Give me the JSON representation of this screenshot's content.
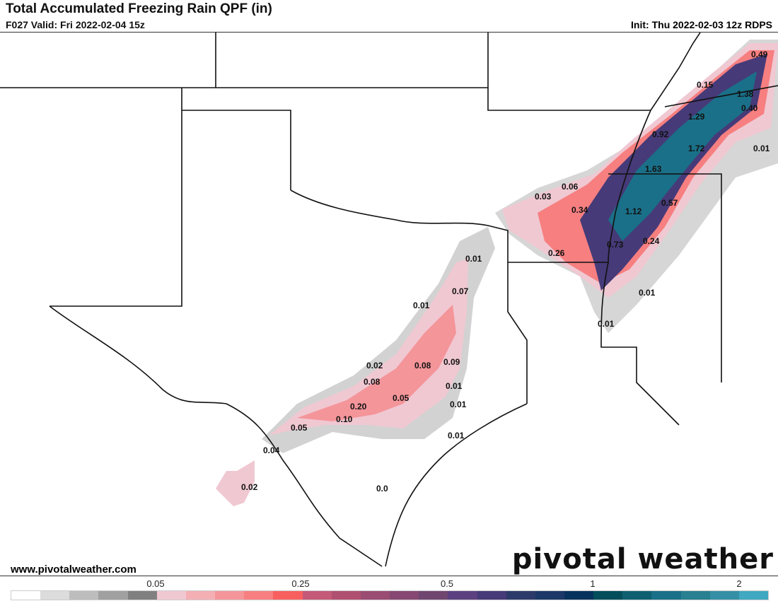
{
  "header": {
    "title": "Total Accumulated Freezing Rain QPF (in)",
    "valid": "F027 Valid: Fri 2022-02-04 15z",
    "init": "Init: Thu 2022-02-03 12z RDPS"
  },
  "footer": {
    "site": "www.pivotalweather.com",
    "logo": "pivotal weather"
  },
  "colorbar": {
    "colors": [
      "#ffffff",
      "#dcdcdc",
      "#bdbdbd",
      "#a0a0a0",
      "#808080",
      "#f0c8d2",
      "#f4afb4",
      "#f4959a",
      "#f77f80",
      "#f86060",
      "#c45a78",
      "#b05070",
      "#9a4c72",
      "#864872",
      "#704670",
      "#5c4080",
      "#463a78",
      "#2c3a6a",
      "#1c3868",
      "#08325e",
      "#044e5c",
      "#0e6070",
      "#1a7088",
      "#288090",
      "#3590a5",
      "#40a8c0"
    ],
    "ticks": [
      "0.05",
      "0.25",
      "0.5",
      "1",
      "2"
    ]
  },
  "map_labels": [
    "0.49",
    "0.15",
    "1.38",
    "0.40",
    "1.29",
    "0.92",
    "1.72",
    "0.01",
    "1.63",
    "0.06",
    "0.03",
    "0.34",
    "0.57",
    "1.12",
    "0.24",
    "0.26",
    "0.73",
    "0.01",
    "0.07",
    "0.01",
    "0.01",
    "0.01",
    "0.02",
    "0.08",
    "0.09",
    "0.08",
    "0.01",
    "0.05",
    "0.01",
    "0.20",
    "0.10",
    "0.05",
    "0.01",
    "0.04",
    "0.02",
    "0.0"
  ]
}
